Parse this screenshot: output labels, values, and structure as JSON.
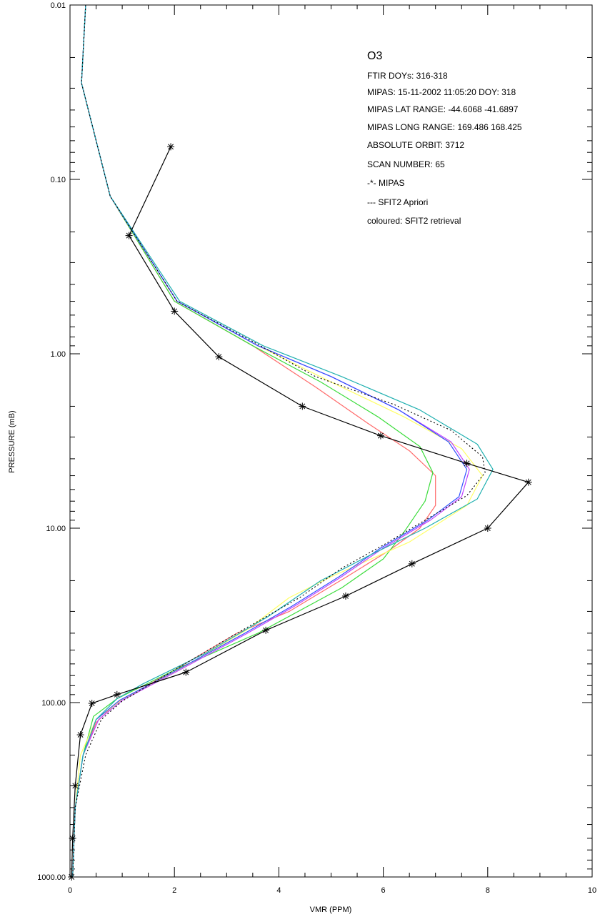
{
  "chart_data": {
    "type": "line",
    "title_fragment": "(   ) ,    (   )",
    "xlabel": "VMR (PPM)",
    "ylabel": "PRESSURE (mB)",
    "xlim": [
      0,
      10
    ],
    "ylim": [
      0.01,
      1000
    ],
    "y_scale": "log",
    "y_reversed": true,
    "x_ticks": [
      "0",
      "2",
      "4",
      "6",
      "8",
      "10"
    ],
    "y_ticks": [
      "0.01",
      "0.10",
      "1.00",
      "10.00",
      "100.00",
      "1000.00"
    ],
    "grid": false,
    "annotation": {
      "title": "O3",
      "lines": [
        "FTIR DOYs: 316-318",
        "MIPAS: 15-11-2002 11:05:20 DOY: 318",
        "MIPAS LAT RANGE: -44.6068 -41.6897",
        "MIPAS LONG RANGE: 169.486 168.425",
        "ABSOLUTE ORBIT: 3712",
        "SCAN NUMBER: 65",
        "-*- MIPAS",
        "--- SFIT2 Apriori",
        "coloured: SFIT2 retrieval"
      ]
    },
    "series": [
      {
        "color": "#000000",
        "style": "solid-star",
        "points": [
          [
            1.93,
            0.065
          ],
          [
            1.13,
            0.21
          ],
          [
            2.0,
            0.57
          ],
          [
            2.85,
            1.04
          ],
          [
            4.45,
            2.0
          ],
          [
            5.95,
            2.95
          ],
          [
            7.6,
            4.25
          ],
          [
            8.78,
            5.45
          ],
          [
            8.0,
            10.0
          ],
          [
            6.55,
            16.0
          ],
          [
            5.28,
            24.5
          ],
          [
            3.75,
            38.5
          ],
          [
            2.22,
            67.0
          ],
          [
            0.9,
            90.0
          ],
          [
            0.42,
            101.0
          ],
          [
            0.2,
            153.0
          ],
          [
            0.1,
            300.0
          ],
          [
            0.05,
            600.0
          ],
          [
            0.03,
            1000.0
          ]
        ]
      },
      {
        "color": "#000000",
        "style": "dotted",
        "points": [
          [
            0.3,
            0.01
          ],
          [
            0.22,
            0.028
          ],
          [
            0.77,
            0.125
          ],
          [
            2.05,
            0.5
          ],
          [
            3.5,
            0.85
          ],
          [
            4.7,
            1.35
          ],
          [
            6.2,
            1.95
          ],
          [
            7.3,
            2.75
          ],
          [
            7.9,
            3.9
          ],
          [
            7.95,
            4.8
          ],
          [
            7.6,
            6.5
          ],
          [
            6.8,
            9.0
          ],
          [
            6.0,
            12.5
          ],
          [
            5.2,
            17.0
          ],
          [
            4.4,
            25.0
          ],
          [
            3.2,
            40.0
          ],
          [
            2.0,
            65.0
          ],
          [
            1.0,
            98.0
          ],
          [
            0.6,
            125.0
          ],
          [
            0.3,
            200.0
          ],
          [
            0.1,
            400.0
          ],
          [
            0.05,
            1000.0
          ]
        ]
      },
      {
        "color": "#ff6a6a",
        "style": "solid",
        "points": [
          [
            0.3,
            0.01
          ],
          [
            0.22,
            0.028
          ],
          [
            0.77,
            0.125
          ],
          [
            2.0,
            0.5
          ],
          [
            3.5,
            0.9
          ],
          [
            4.7,
            1.55
          ],
          [
            5.7,
            2.5
          ],
          [
            6.5,
            3.6
          ],
          [
            7.0,
            5.0
          ],
          [
            7.0,
            7.4
          ],
          [
            6.7,
            10.0
          ],
          [
            6.1,
            13.5
          ],
          [
            5.3,
            19.0
          ],
          [
            4.2,
            30.0
          ],
          [
            3.2,
            40.0
          ],
          [
            2.0,
            65.0
          ],
          [
            0.9,
            100.0
          ],
          [
            0.5,
            130.0
          ],
          [
            0.25,
            200.0
          ],
          [
            0.1,
            400.0
          ],
          [
            0.05,
            1000.0
          ]
        ]
      },
      {
        "color": "#3cdc3c",
        "style": "solid",
        "points": [
          [
            0.3,
            0.01
          ],
          [
            0.22,
            0.028
          ],
          [
            0.77,
            0.125
          ],
          [
            2.0,
            0.5
          ],
          [
            3.5,
            0.9
          ],
          [
            4.8,
            1.45
          ],
          [
            5.9,
            2.3
          ],
          [
            6.7,
            3.4
          ],
          [
            6.95,
            4.8
          ],
          [
            6.8,
            7.0
          ],
          [
            6.4,
            10.5
          ],
          [
            6.0,
            15.0
          ],
          [
            5.2,
            22.0
          ],
          [
            3.6,
            40.0
          ],
          [
            2.1,
            63.0
          ],
          [
            0.9,
            95.0
          ],
          [
            0.45,
            120.0
          ],
          [
            0.25,
            200.0
          ],
          [
            0.1,
            400.0
          ],
          [
            0.05,
            1000.0
          ]
        ]
      },
      {
        "color": "#ffff66",
        "style": "solid",
        "points": [
          [
            0.3,
            0.01
          ],
          [
            0.22,
            0.028
          ],
          [
            0.77,
            0.125
          ],
          [
            2.05,
            0.5
          ],
          [
            3.6,
            0.9
          ],
          [
            5.0,
            1.45
          ],
          [
            6.4,
            2.3
          ],
          [
            7.5,
            3.5
          ],
          [
            7.9,
            5.0
          ],
          [
            7.6,
            7.4
          ],
          [
            6.5,
            12.0
          ],
          [
            5.0,
            19.0
          ],
          [
            4.2,
            25.0
          ],
          [
            3.4,
            38.0
          ],
          [
            2.2,
            62.0
          ],
          [
            1.0,
            96.0
          ],
          [
            0.5,
            125.0
          ],
          [
            0.2,
            200.0
          ],
          [
            0.1,
            400.0
          ],
          [
            0.05,
            1000.0
          ]
        ]
      },
      {
        "color": "#c040ff",
        "style": "solid",
        "points": [
          [
            0.3,
            0.01
          ],
          [
            0.22,
            0.028
          ],
          [
            0.77,
            0.125
          ],
          [
            2.05,
            0.5
          ],
          [
            3.6,
            0.9
          ],
          [
            5.0,
            1.35
          ],
          [
            6.3,
            2.1
          ],
          [
            7.3,
            3.2
          ],
          [
            7.65,
            4.6
          ],
          [
            7.5,
            6.6
          ],
          [
            6.9,
            9.0
          ],
          [
            6.0,
            13.0
          ],
          [
            5.2,
            19.0
          ],
          [
            4.3,
            28.0
          ],
          [
            3.4,
            40.0
          ],
          [
            2.1,
            65.0
          ],
          [
            1.0,
            97.0
          ],
          [
            0.55,
            125.0
          ],
          [
            0.25,
            200.0
          ],
          [
            0.1,
            400.0
          ],
          [
            0.05,
            1000.0
          ]
        ]
      },
      {
        "color": "#3050ff",
        "style": "solid",
        "points": [
          [
            0.3,
            0.01
          ],
          [
            0.22,
            0.028
          ],
          [
            0.77,
            0.125
          ],
          [
            2.05,
            0.5
          ],
          [
            3.6,
            0.9
          ],
          [
            5.0,
            1.35
          ],
          [
            6.3,
            2.1
          ],
          [
            7.25,
            3.2
          ],
          [
            7.6,
            4.6
          ],
          [
            7.45,
            6.6
          ],
          [
            6.85,
            9.0
          ],
          [
            5.95,
            13.0
          ],
          [
            5.15,
            19.0
          ],
          [
            4.25,
            28.0
          ],
          [
            3.35,
            40.0
          ],
          [
            2.05,
            65.0
          ],
          [
            0.95,
            97.0
          ],
          [
            0.5,
            125.0
          ],
          [
            0.25,
            200.0
          ],
          [
            0.1,
            400.0
          ],
          [
            0.05,
            1000.0
          ]
        ]
      },
      {
        "color": "#20b0b0",
        "style": "solid",
        "points": [
          [
            0.3,
            0.01
          ],
          [
            0.22,
            0.028
          ],
          [
            0.77,
            0.125
          ],
          [
            2.1,
            0.5
          ],
          [
            3.7,
            0.9
          ],
          [
            5.2,
            1.35
          ],
          [
            6.7,
            2.1
          ],
          [
            7.8,
            3.3
          ],
          [
            8.1,
            4.6
          ],
          [
            7.8,
            6.8
          ],
          [
            6.8,
            10.0
          ],
          [
            5.8,
            14.0
          ],
          [
            4.8,
            20.0
          ],
          [
            3.8,
            32.0
          ],
          [
            2.6,
            52.0
          ],
          [
            1.4,
            78.0
          ],
          [
            0.9,
            95.0
          ],
          [
            0.5,
            125.0
          ],
          [
            0.25,
            200.0
          ],
          [
            0.1,
            400.0
          ],
          [
            0.05,
            1000.0
          ]
        ]
      }
    ]
  }
}
